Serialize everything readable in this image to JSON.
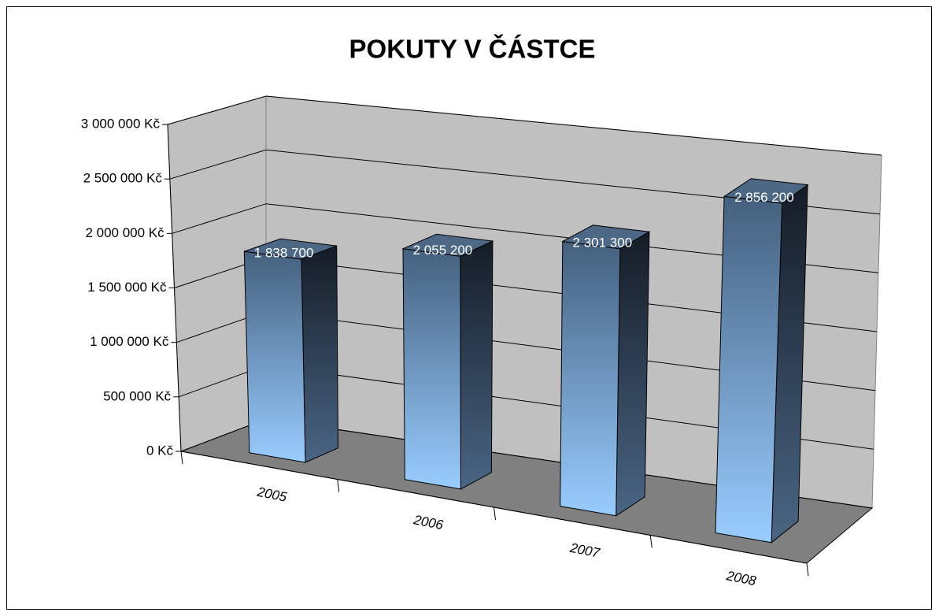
{
  "chart_data": {
    "type": "bar3d",
    "title": "POKUTY V ČÁSTCE",
    "categories": [
      "2005",
      "2006",
      "2007",
      "2008"
    ],
    "values": [
      1838700,
      2055200,
      2301300,
      2856200
    ],
    "value_labels": [
      "1 838 700",
      "2 055 200",
      "2 301 300",
      "2 856 200"
    ],
    "ylim": [
      0,
      3000000
    ],
    "yticks": [
      {
        "value": 0,
        "label": "0 Kč"
      },
      {
        "value": 500000,
        "label": "500 000 Kč"
      },
      {
        "value": 1000000,
        "label": "1 000 000 Kč"
      },
      {
        "value": 1500000,
        "label": "1 500 000 Kč"
      },
      {
        "value": 2000000,
        "label": "2 000 000 Kč"
      },
      {
        "value": 2500000,
        "label": "2 500 000 Kč"
      },
      {
        "value": 3000000,
        "label": "3 000 000 Kč"
      }
    ],
    "grid": true
  }
}
